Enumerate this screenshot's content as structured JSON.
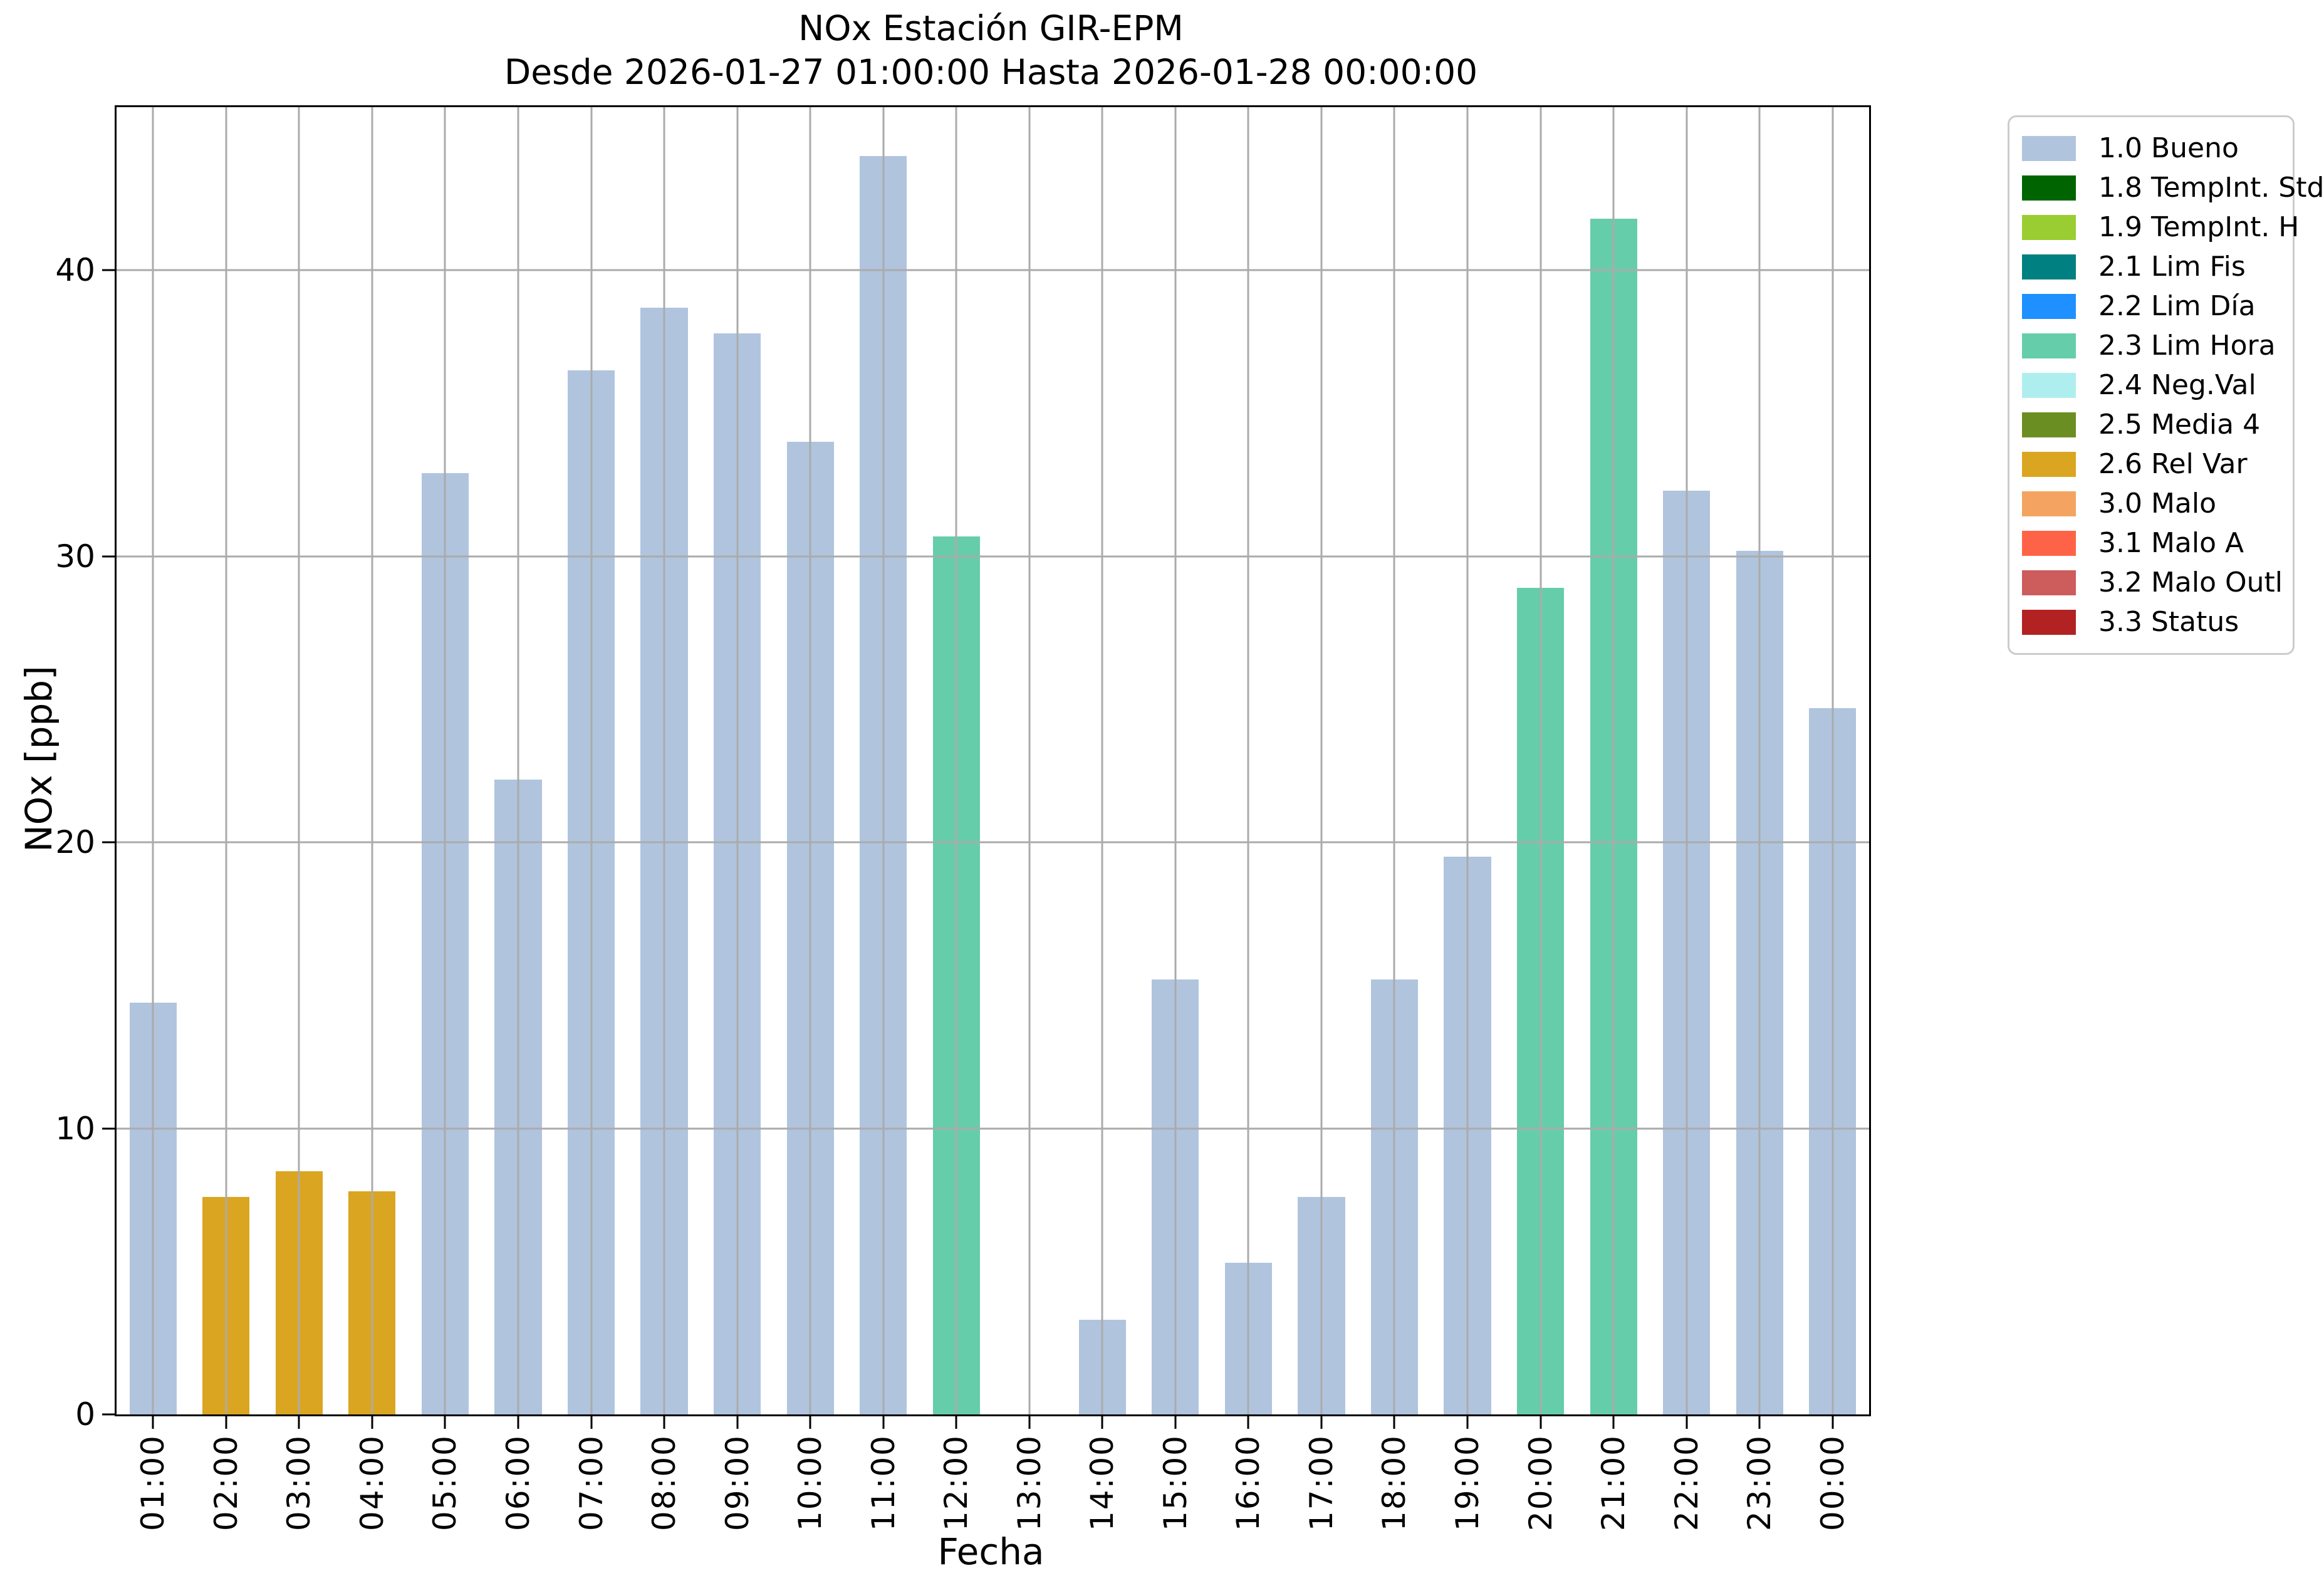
{
  "chart_data": {
    "type": "bar",
    "title": "NOx Estación GIR-EPM",
    "subtitle": "Desde 2026-01-27 01:00:00 Hasta 2026-01-28 00:00:00",
    "xlabel": "Fecha",
    "ylabel": "NOx [ppb]",
    "ylim": [
      0,
      45.7
    ],
    "yticks": [
      0,
      10,
      20,
      30,
      40
    ],
    "grid": true,
    "grid_color": "#ababab",
    "bar_width_fraction": 0.645,
    "legend_position": "outside upper right",
    "categories": [
      "01:00",
      "02:00",
      "03:00",
      "04:00",
      "05:00",
      "06:00",
      "07:00",
      "08:00",
      "09:00",
      "10:00",
      "11:00",
      "12:00",
      "13:00",
      "14:00",
      "15:00",
      "16:00",
      "17:00",
      "18:00",
      "19:00",
      "20:00",
      "21:00",
      "22:00",
      "23:00",
      "00:00"
    ],
    "values": [
      14.4,
      7.6,
      8.5,
      7.8,
      32.9,
      22.2,
      36.5,
      38.7,
      37.8,
      34.0,
      44.0,
      30.7,
      0,
      3.3,
      15.2,
      5.3,
      7.6,
      15.2,
      19.5,
      28.9,
      41.8,
      32.3,
      30.2,
      24.7
    ],
    "statuses": [
      "bueno",
      "rel_var",
      "rel_var",
      "rel_var",
      "bueno",
      "bueno",
      "bueno",
      "bueno",
      "bueno",
      "bueno",
      "bueno",
      "lim_hora",
      "none",
      "bueno",
      "bueno",
      "bueno",
      "bueno",
      "bueno",
      "bueno",
      "lim_hora",
      "lim_hora",
      "bueno",
      "bueno",
      "bueno"
    ],
    "legend": [
      {
        "key": "bueno",
        "label": "1.0 Bueno",
        "color": "#b0c4de"
      },
      {
        "key": "tempint_std",
        "label": "1.8 TempInt. Std",
        "color": "#006400"
      },
      {
        "key": "tempint_h",
        "label": "1.9 TempInt. H",
        "color": "#9acd32"
      },
      {
        "key": "lim_fis",
        "label": "2.1 Lim Fis",
        "color": "#008080"
      },
      {
        "key": "lim_dia",
        "label": "2.2 Lim Día",
        "color": "#1e90ff"
      },
      {
        "key": "lim_hora",
        "label": "2.3 Lim Hora",
        "color": "#66cdaa"
      },
      {
        "key": "neg_val",
        "label": "2.4 Neg.Val",
        "color": "#afeeee"
      },
      {
        "key": "media_4",
        "label": "2.5 Media 4",
        "color": "#6b8e23"
      },
      {
        "key": "rel_var",
        "label": "2.6 Rel Var",
        "color": "#daa520"
      },
      {
        "key": "malo",
        "label": "3.0 Malo",
        "color": "#f4a460"
      },
      {
        "key": "malo_a",
        "label": "3.1 Malo A",
        "color": "#ff6347"
      },
      {
        "key": "malo_outl",
        "label": "3.2 Malo Outl",
        "color": "#cd5c5c"
      },
      {
        "key": "status",
        "label": "3.3 Status",
        "color": "#b22222"
      }
    ]
  }
}
